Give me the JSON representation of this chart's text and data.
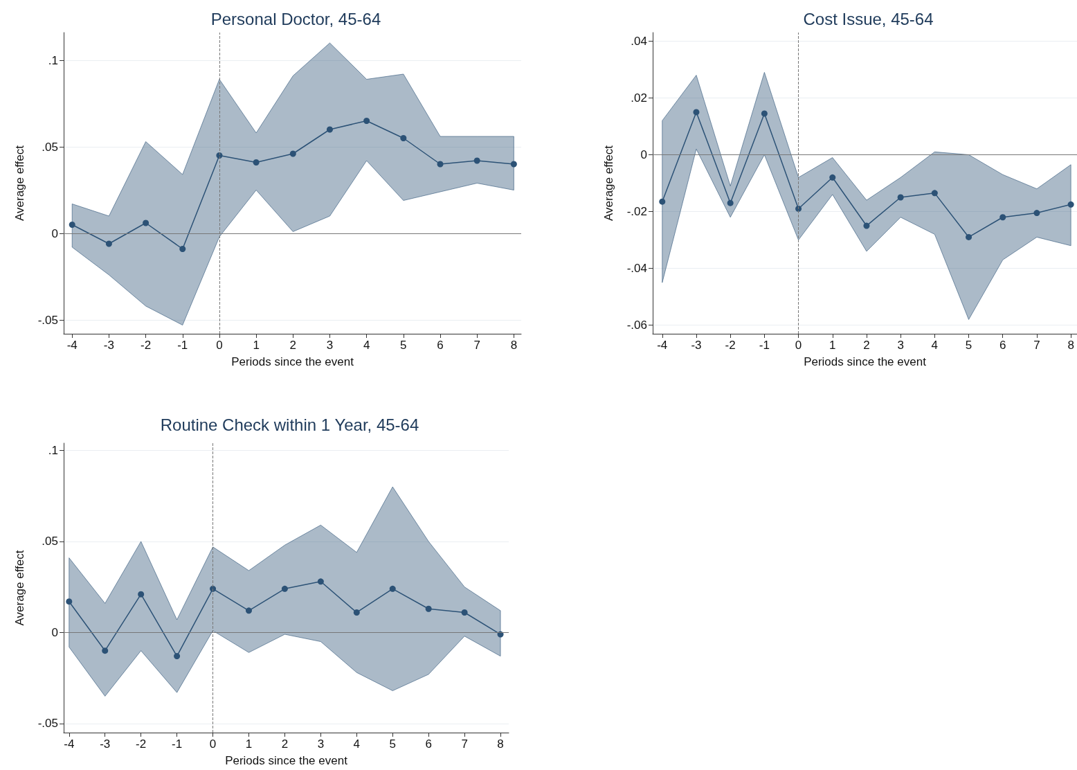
{
  "chart_data": [
    {
      "type": "line",
      "title": "Personal Doctor, 45-64",
      "xlabel": "Periods since the event",
      "ylabel": "Average effect",
      "x": [
        -4,
        -3,
        -2,
        -1,
        0,
        1,
        2,
        3,
        4,
        5,
        6,
        7,
        8
      ],
      "series": [
        {
          "color": "#2c5276",
          "values": [
            0.005,
            -0.006,
            0.006,
            -0.009,
            0.045,
            0.041,
            0.046,
            0.06,
            0.065,
            0.055,
            0.04,
            0.042,
            0.04
          ],
          "lower": [
            -0.008,
            -0.024,
            -0.042,
            -0.053,
            -0.002,
            0.025,
            0.001,
            0.01,
            0.042,
            0.019,
            0.024,
            0.029,
            0.025
          ],
          "upper": [
            0.017,
            0.01,
            0.053,
            0.034,
            0.089,
            0.058,
            0.091,
            0.11,
            0.089,
            0.092,
            0.056,
            0.056,
            0.056
          ]
        }
      ],
      "xlim": [
        -4.23,
        8.2
      ],
      "xticks": [
        -4,
        -3,
        -2,
        -1,
        0,
        1,
        2,
        3,
        4,
        5,
        6,
        7,
        8
      ],
      "ylim": [
        -0.058,
        0.116
      ],
      "yticks": [
        {
          "value": -0.05,
          "label": "-.05"
        },
        {
          "value": 0,
          "label": "0"
        },
        {
          "value": 0.05,
          "label": ".05"
        },
        {
          "value": 0.1,
          "label": ".1"
        }
      ],
      "ref_lines": [
        {
          "axis": "x",
          "value": 0,
          "line_style": "dashed"
        },
        {
          "axis": "y",
          "value": 0,
          "line_style": "solid"
        }
      ],
      "grid": "y",
      "marker": "circle",
      "line_style": "solid"
    },
    {
      "type": "line",
      "title": "Cost Issue, 45-64",
      "xlabel": "Periods since the event",
      "ylabel": "Average effect",
      "x": [
        -4,
        -3,
        -2,
        -1,
        0,
        1,
        2,
        3,
        4,
        5,
        6,
        7,
        8
      ],
      "series": [
        {
          "color": "#2c5276",
          "values": [
            -0.0165,
            0.015,
            -0.017,
            0.0145,
            -0.019,
            -0.008,
            -0.025,
            -0.015,
            -0.0135,
            -0.029,
            -0.022,
            -0.0205,
            -0.0175
          ],
          "lower": [
            -0.045,
            0.002,
            -0.022,
            0.0,
            -0.03,
            -0.014,
            -0.034,
            -0.022,
            -0.028,
            -0.058,
            -0.037,
            -0.029,
            -0.032
          ],
          "upper": [
            0.012,
            0.028,
            -0.011,
            0.029,
            -0.008,
            -0.001,
            -0.016,
            -0.008,
            0.001,
            0.0,
            -0.007,
            -0.012,
            -0.0035
          ]
        }
      ],
      "xlim": [
        -4.28,
        8.18
      ],
      "xticks": [
        -4,
        -3,
        -2,
        -1,
        0,
        1,
        2,
        3,
        4,
        5,
        6,
        7,
        8
      ],
      "ylim": [
        -0.063,
        0.043
      ],
      "yticks": [
        {
          "value": -0.06,
          "label": "-.06"
        },
        {
          "value": -0.04,
          "label": "-.04"
        },
        {
          "value": -0.02,
          "label": "-.02"
        },
        {
          "value": 0,
          "label": "0"
        },
        {
          "value": 0.02,
          "label": ".02"
        },
        {
          "value": 0.04,
          "label": ".04"
        }
      ],
      "ref_lines": [
        {
          "axis": "x",
          "value": 0,
          "line_style": "dashed"
        },
        {
          "axis": "y",
          "value": 0,
          "line_style": "solid"
        }
      ],
      "grid": "y",
      "marker": "circle",
      "line_style": "solid"
    },
    {
      "type": "line",
      "title": "Routine Check within 1 Year, 45-64",
      "xlabel": "Periods since the event",
      "ylabel": "Average effect",
      "x": [
        -4,
        -3,
        -2,
        -1,
        0,
        1,
        2,
        3,
        4,
        5,
        6,
        7,
        8
      ],
      "series": [
        {
          "color": "#2c5276",
          "values": [
            0.017,
            -0.01,
            0.021,
            -0.013,
            0.024,
            0.012,
            0.024,
            0.028,
            0.011,
            0.024,
            0.013,
            0.011,
            -0.001
          ],
          "lower": [
            -0.008,
            -0.035,
            -0.01,
            -0.033,
            0.001,
            -0.011,
            -0.001,
            -0.005,
            -0.022,
            -0.032,
            -0.023,
            -0.002,
            -0.013
          ],
          "upper": [
            0.041,
            0.016,
            0.05,
            0.007,
            0.047,
            0.034,
            0.048,
            0.059,
            0.044,
            0.08,
            0.05,
            0.025,
            0.012
          ]
        }
      ],
      "xlim": [
        -4.15,
        8.23
      ],
      "xticks": [
        -4,
        -3,
        -2,
        -1,
        0,
        1,
        2,
        3,
        4,
        5,
        6,
        7,
        8
      ],
      "ylim": [
        -0.055,
        0.104
      ],
      "yticks": [
        {
          "value": -0.05,
          "label": "-.05"
        },
        {
          "value": 0,
          "label": "0"
        },
        {
          "value": 0.05,
          "label": ".05"
        },
        {
          "value": 0.1,
          "label": ".1"
        }
      ],
      "ref_lines": [
        {
          "axis": "x",
          "value": 0,
          "line_style": "dashed"
        },
        {
          "axis": "y",
          "value": 0,
          "line_style": "solid"
        }
      ],
      "grid": "y",
      "marker": "circle",
      "line_style": "solid"
    }
  ]
}
